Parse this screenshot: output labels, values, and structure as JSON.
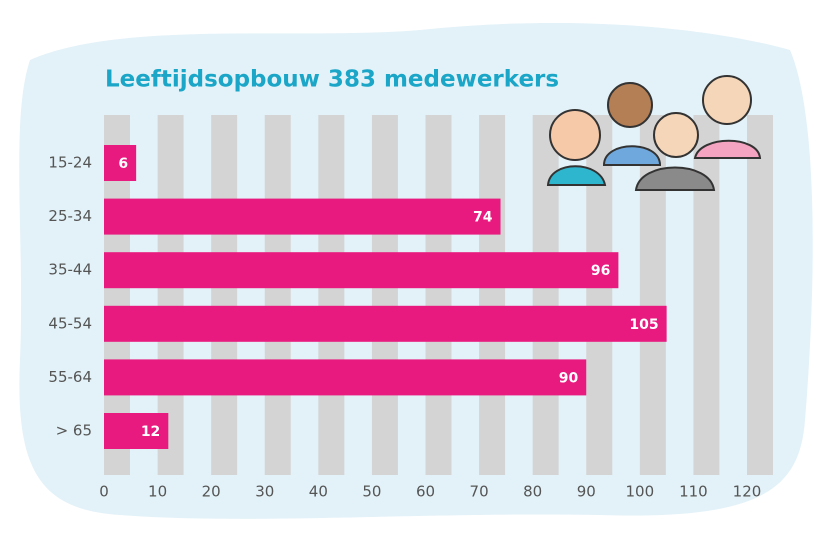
{
  "chart_data": {
    "type": "bar",
    "orientation": "horizontal",
    "title": "Leeftijdsopbouw 383 medewerkers",
    "categories": [
      "15-24",
      "25-34",
      "35-44",
      "45-54",
      "55-64",
      "> 65"
    ],
    "values": [
      6,
      74,
      96,
      105,
      90,
      12
    ],
    "color": "#e8197f",
    "xlim": [
      0,
      120
    ],
    "xticks": [
      0,
      10,
      20,
      30,
      40,
      50,
      60,
      70,
      80,
      90,
      100,
      110,
      120
    ],
    "grid": true
  }
}
